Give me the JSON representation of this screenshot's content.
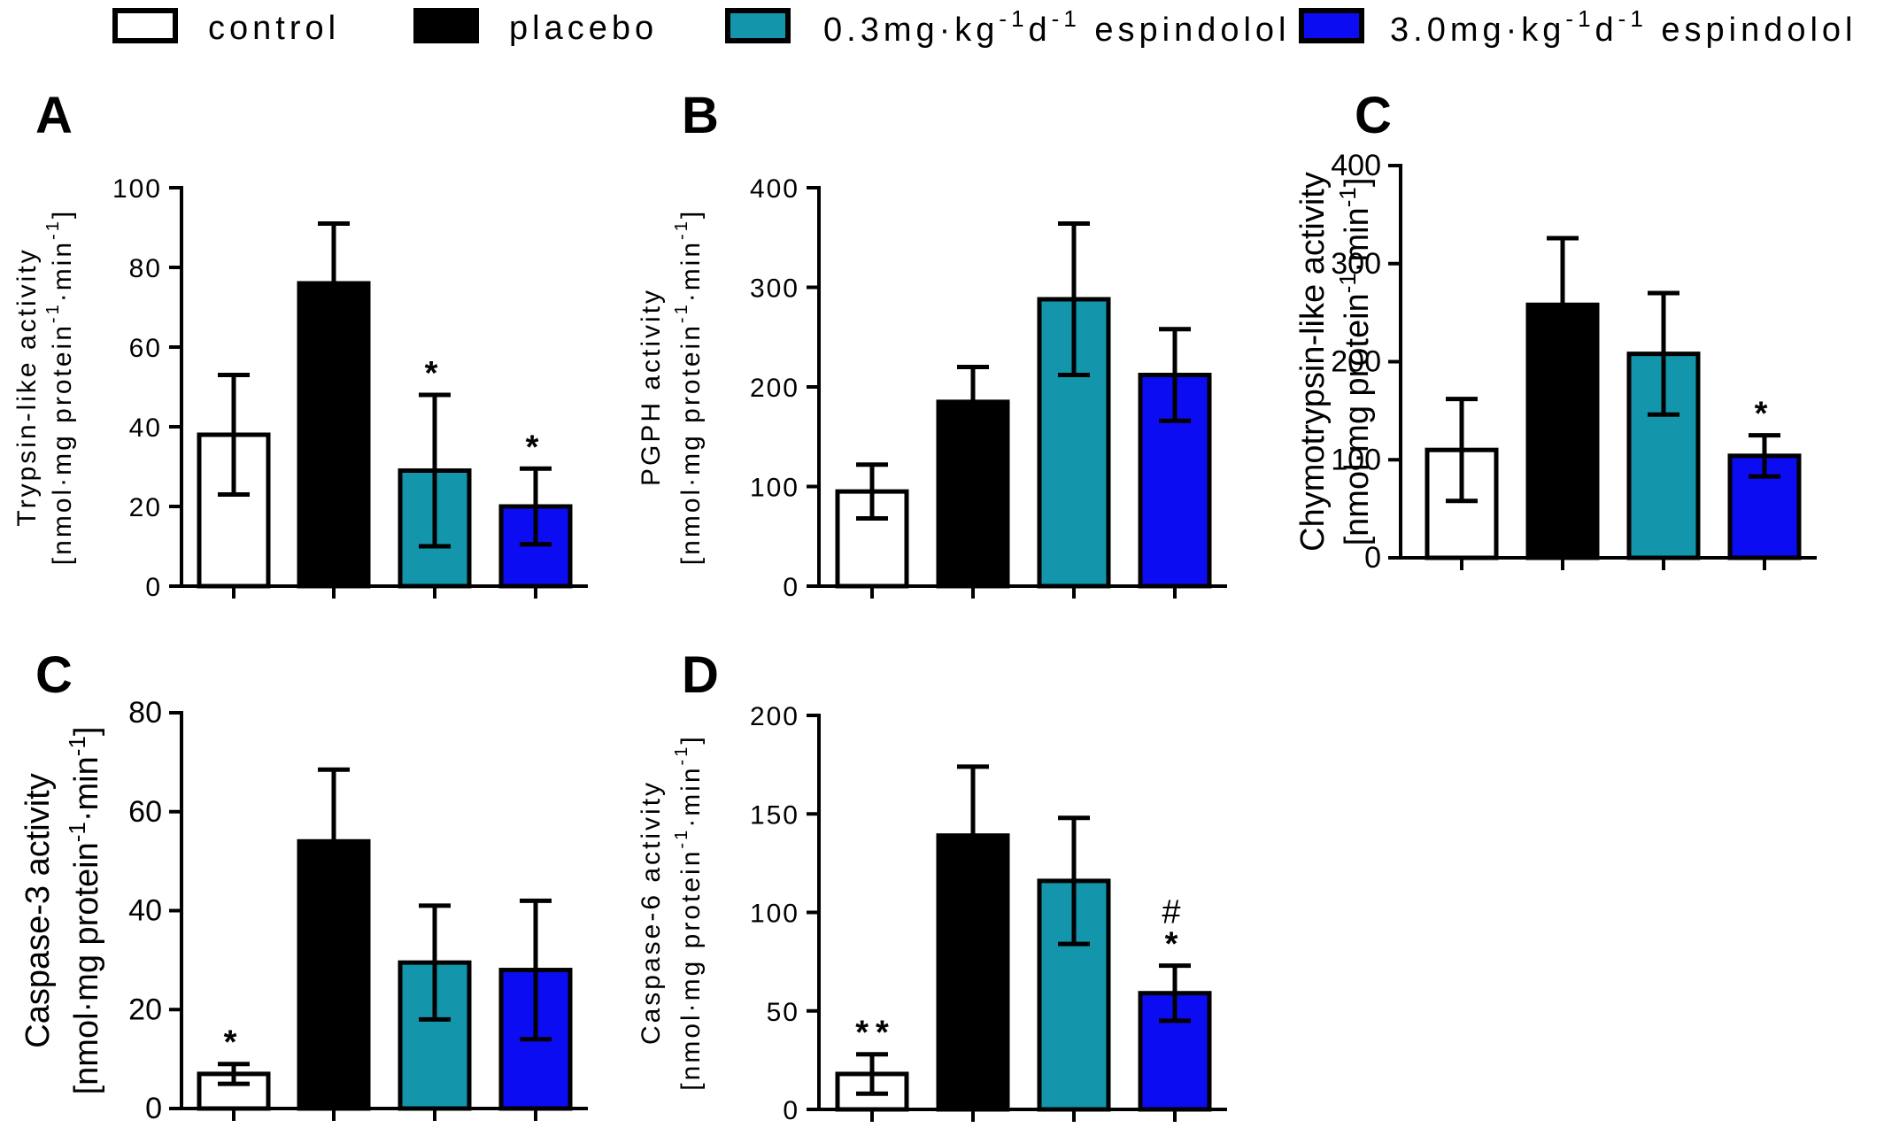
{
  "legend": [
    {
      "label": "control",
      "color": "#ffffff"
    },
    {
      "label": "placebo",
      "color": "#000000"
    },
    {
      "label_parts": [
        "0.3mg·kg",
        "-1",
        "d",
        "-1",
        " espindolol"
      ],
      "color": "#1396ab"
    },
    {
      "label_parts": [
        "3.0mg·kg",
        "-1",
        "d",
        "-1",
        " espindolol"
      ],
      "color": "#0c0cf2"
    }
  ],
  "chart_data": [
    {
      "type": "bar",
      "panel": "A",
      "categories": [
        "control",
        "placebo",
        "0.3mg·kg-1d-1 espindolol",
        "3.0mg·kg-1d-1 espindolol"
      ],
      "values": [
        38,
        76,
        29,
        20
      ],
      "errors": [
        15,
        15,
        19,
        9.5
      ],
      "annotations": [
        "",
        "",
        "*",
        "*"
      ],
      "ylabel_line1": "Trypsin-like activity",
      "ylabel_parts": [
        "[nmol·mg protein",
        "-1",
        "·min",
        "-1",
        "]"
      ],
      "ylim": [
        0,
        100
      ],
      "yticks": [
        0,
        20,
        40,
        60,
        80,
        100
      ]
    },
    {
      "type": "bar",
      "panel": "B",
      "categories": [
        "control",
        "placebo",
        "0.3mg·kg-1d-1 espindolol",
        "3.0mg·kg-1d-1 espindolol"
      ],
      "values": [
        95,
        185,
        288,
        212
      ],
      "errors": [
        27,
        35,
        76,
        46
      ],
      "annotations": [
        "",
        "",
        "",
        ""
      ],
      "ylabel_line1": "PGPH activity",
      "ylabel_parts": [
        "[nmol·mg protein",
        "-1",
        "·min",
        "-1",
        "]"
      ],
      "ylim": [
        0,
        400
      ],
      "yticks": [
        0,
        100,
        200,
        300,
        400
      ]
    },
    {
      "type": "bar",
      "panel": "C",
      "categories": [
        "control",
        "placebo",
        "0.3mg·kg-1d-1 espindolol",
        "3.0mg·kg-1d-1 espindolol"
      ],
      "values": [
        110,
        258,
        208,
        104
      ],
      "errors": [
        52,
        68,
        62,
        21
      ],
      "annotations": [
        "",
        "",
        "",
        "*"
      ],
      "ylabel_line1": "Chymotrypsin-like activity",
      "ylabel_parts": [
        "[nmol·mg protein",
        "-1",
        "·min",
        "-1",
        "]"
      ],
      "ylim": [
        0,
        400
      ],
      "yticks": [
        0,
        100,
        200,
        300,
        400
      ]
    },
    {
      "type": "bar",
      "panel": "C",
      "categories": [
        "control",
        "placebo",
        "0.3mg·kg-1d-1 espindolol",
        "3.0mg·kg-1d-1 espindolol"
      ],
      "values": [
        7,
        54,
        29.5,
        28
      ],
      "errors": [
        2,
        14.5,
        11.5,
        14
      ],
      "annotations": [
        "*",
        "",
        "",
        ""
      ],
      "ylabel_line1": "Caspase-3 activity",
      "ylabel_parts": [
        "[nmol·mg protein",
        "-1",
        "·min",
        "-1",
        "]"
      ],
      "ylim": [
        0,
        80
      ],
      "yticks": [
        0,
        20,
        40,
        60,
        80
      ]
    },
    {
      "type": "bar",
      "panel": "D",
      "categories": [
        "control",
        "placebo",
        "0.3mg·kg-1d-1 espindolol",
        "3.0mg·kg-1d-1 espindolol"
      ],
      "values": [
        18,
        139,
        116,
        59
      ],
      "errors": [
        10,
        35,
        32,
        14
      ],
      "annotations": [
        "**",
        "",
        "",
        "*"
      ],
      "annotations_extra": [
        "",
        "",
        "",
        "#"
      ],
      "ylabel_line1": "Caspase-6 activity",
      "ylabel_parts": [
        "[nmol·mg protein",
        "-1",
        "·min",
        "-1",
        "]"
      ],
      "ylim": [
        0,
        200
      ],
      "yticks": [
        0,
        50,
        100,
        150,
        200
      ]
    }
  ]
}
